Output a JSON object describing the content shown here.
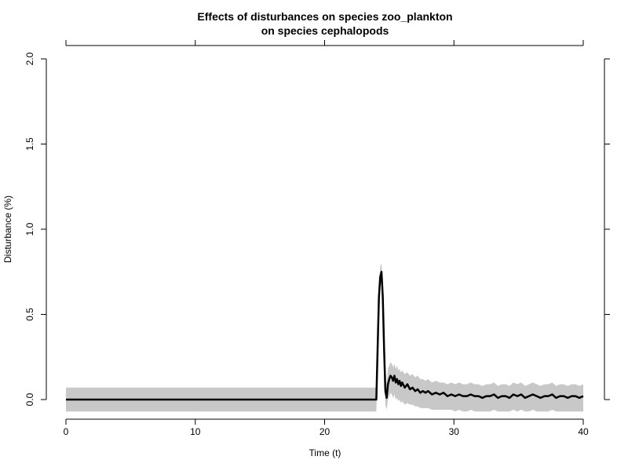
{
  "chart_data": {
    "type": "line",
    "title": "Effects of disturbances on species zoo_plankton",
    "subtitle": "on species cephalopods",
    "xlabel": "Time (t)",
    "ylabel": "Disturbance (%)",
    "xlim": [
      0,
      40
    ],
    "ylim": [
      0,
      2
    ],
    "x_ticks": [
      0,
      10,
      20,
      30,
      40
    ],
    "y_ticks": [
      0,
      0.5,
      1,
      1.5,
      2
    ],
    "x_tick_labels": [
      "0",
      "10",
      "20",
      "30",
      "40"
    ],
    "y_tick_labels": [
      "0.0",
      "0.5",
      "1.0",
      "1.5",
      "2.0"
    ],
    "top_axis_ticks": [
      0,
      10,
      20,
      30,
      40
    ],
    "right_axis_ticks": [
      0,
      0.5,
      1,
      1.5,
      2
    ],
    "grid": false,
    "series": [
      {
        "line_color": "#000000",
        "band_color": "#c8c8c8",
        "x": [
          0,
          23.99,
          24.0,
          24.1,
          24.2,
          24.3,
          24.4,
          24.5,
          24.6,
          24.7,
          24.8,
          24.9,
          25.0,
          25.1,
          25.2,
          25.3,
          25.4,
          25.5,
          25.6,
          25.7,
          25.8,
          25.9,
          26.0,
          26.2,
          26.4,
          26.6,
          26.8,
          27.0,
          27.2,
          27.4,
          27.6,
          27.8,
          28.0,
          28.3,
          28.6,
          28.9,
          29.2,
          29.5,
          29.8,
          30.1,
          30.4,
          30.7,
          31.0,
          31.3,
          31.6,
          31.9,
          32.2,
          32.5,
          32.8,
          33.1,
          33.4,
          33.7,
          34.0,
          34.3,
          34.6,
          34.9,
          35.2,
          35.5,
          35.8,
          36.1,
          36.4,
          36.7,
          37.0,
          37.3,
          37.6,
          37.9,
          38.2,
          38.5,
          38.8,
          39.1,
          39.4,
          39.7,
          40.0
        ],
        "y": [
          0,
          0,
          0.0,
          0.3,
          0.6,
          0.72,
          0.75,
          0.6,
          0.3,
          0.05,
          0.01,
          0.09,
          0.12,
          0.14,
          0.13,
          0.11,
          0.14,
          0.1,
          0.12,
          0.09,
          0.11,
          0.08,
          0.1,
          0.07,
          0.09,
          0.06,
          0.07,
          0.05,
          0.06,
          0.04,
          0.05,
          0.04,
          0.05,
          0.03,
          0.04,
          0.03,
          0.04,
          0.02,
          0.03,
          0.02,
          0.03,
          0.02,
          0.02,
          0.03,
          0.02,
          0.02,
          0.01,
          0.02,
          0.02,
          0.03,
          0.01,
          0.02,
          0.02,
          0.01,
          0.03,
          0.02,
          0.03,
          0.01,
          0.02,
          0.03,
          0.02,
          0.01,
          0.02,
          0.02,
          0.03,
          0.01,
          0.02,
          0.02,
          0.01,
          0.02,
          0.02,
          0.01,
          0.02
        ],
        "lower": [
          -0.07,
          -0.07,
          -0.07,
          0.22,
          0.52,
          0.66,
          0.69,
          0.52,
          0.2,
          -0.03,
          -0.06,
          0.0,
          0.02,
          0.04,
          0.03,
          0.01,
          0.03,
          0.0,
          0.01,
          -0.01,
          0.0,
          -0.02,
          -0.01,
          -0.03,
          -0.02,
          -0.03,
          -0.03,
          -0.04,
          -0.04,
          -0.05,
          -0.05,
          -0.05,
          -0.05,
          -0.06,
          -0.06,
          -0.06,
          -0.06,
          -0.06,
          -0.06,
          -0.07,
          -0.06,
          -0.07,
          -0.07,
          -0.06,
          -0.07,
          -0.07,
          -0.07,
          -0.07,
          -0.07,
          -0.06,
          -0.07,
          -0.07,
          -0.07,
          -0.07,
          -0.06,
          -0.07,
          -0.06,
          -0.07,
          -0.07,
          -0.06,
          -0.07,
          -0.07,
          -0.07,
          -0.07,
          -0.06,
          -0.07,
          -0.07,
          -0.07,
          -0.07,
          -0.07,
          -0.07,
          -0.07,
          -0.07
        ],
        "upper": [
          0.07,
          0.07,
          0.07,
          0.38,
          0.68,
          0.78,
          0.8,
          0.68,
          0.4,
          0.13,
          0.09,
          0.18,
          0.2,
          0.22,
          0.21,
          0.19,
          0.21,
          0.18,
          0.2,
          0.17,
          0.18,
          0.16,
          0.17,
          0.15,
          0.16,
          0.14,
          0.15,
          0.13,
          0.14,
          0.12,
          0.12,
          0.11,
          0.12,
          0.1,
          0.11,
          0.1,
          0.1,
          0.09,
          0.1,
          0.09,
          0.1,
          0.09,
          0.09,
          0.1,
          0.09,
          0.09,
          0.08,
          0.09,
          0.09,
          0.1,
          0.08,
          0.09,
          0.09,
          0.08,
          0.1,
          0.09,
          0.1,
          0.08,
          0.09,
          0.1,
          0.09,
          0.08,
          0.09,
          0.09,
          0.1,
          0.08,
          0.09,
          0.09,
          0.08,
          0.09,
          0.09,
          0.08,
          0.09
        ]
      }
    ]
  }
}
